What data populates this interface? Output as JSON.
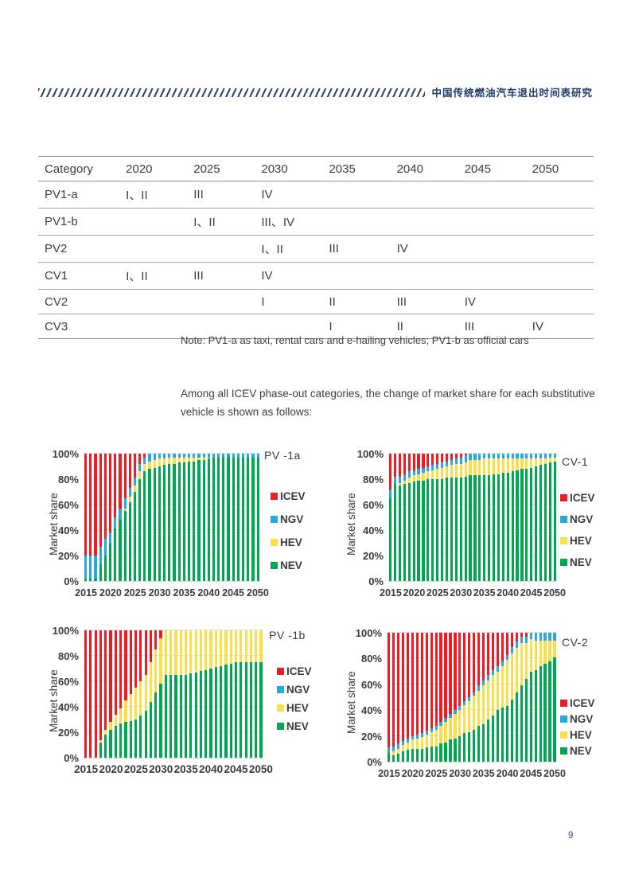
{
  "page": {
    "number": "9"
  },
  "header": {
    "title_zh": "中国传统燃油汽车退出时间表研究"
  },
  "phase_out_table": {
    "columns": [
      "Category",
      "2020",
      "2025",
      "2030",
      "2035",
      "2040",
      "2045",
      "2050"
    ],
    "rows": [
      {
        "category": "PV1-a",
        "cells": [
          "I、II",
          "III",
          "IV",
          "",
          "",
          "",
          ""
        ]
      },
      {
        "category": "PV1-b",
        "cells": [
          "",
          "I、II",
          "III、IV",
          "",
          "",
          "",
          ""
        ]
      },
      {
        "category": "PV2",
        "cells": [
          "",
          "",
          "I、II",
          "III",
          "IV",
          "",
          ""
        ]
      },
      {
        "category": "CV1",
        "cells": [
          "I、II",
          "III",
          "IV",
          "",
          "",
          "",
          ""
        ]
      },
      {
        "category": "CV2",
        "cells": [
          "",
          "",
          "I",
          "II",
          "III",
          "IV",
          ""
        ]
      },
      {
        "category": "CV3",
        "cells": [
          "",
          "",
          "",
          "I",
          "II",
          "III",
          "IV"
        ]
      }
    ],
    "note": "Note: PV1-a as taxi, rental cars and e-hailing vehicles; PV1-b as official cars"
  },
  "paragraph": "Among all ICEV phase-out categories, the change of market share for each substitutive vehicle is shown as follows:",
  "colors": {
    "icev_red": "#ed1c24",
    "ngv_blue": "#29a8e0",
    "hev_yellow": "#f9e04b",
    "nev_green": "#00a650",
    "grid_gray": "#e3e3e3",
    "header_navy": "#1d3a66",
    "page_number_blue": "#27509e"
  },
  "chart_data": [
    {
      "type": "bar",
      "stacked": true,
      "title": "PV -1a",
      "ylabel": "Market share",
      "ylim": [
        0,
        100
      ],
      "x_range": [
        2015,
        2050
      ],
      "y_ticks": [
        "0%",
        "20%",
        "40%",
        "60%",
        "80%",
        "100%"
      ],
      "x_tick_labels": [
        "2015",
        "2020",
        "2025",
        "2030",
        "2035",
        "2040",
        "2045",
        "2050"
      ],
      "legend_order": [
        "ICEV",
        "NGV",
        "HEV",
        "NEV"
      ],
      "series": [
        {
          "name": "NEV",
          "color": "#00a650",
          "values": [
            2,
            2,
            2,
            13,
            20,
            30,
            41,
            48,
            55,
            62,
            70,
            80,
            86,
            88,
            89,
            90,
            91,
            92,
            92,
            93,
            93,
            94,
            94,
            95,
            95,
            96,
            97,
            97,
            97,
            97,
            97,
            97,
            97,
            97,
            97,
            97
          ]
        },
        {
          "name": "HEV",
          "color": "#f9e04b",
          "values": [
            0,
            0,
            0,
            0,
            0,
            0,
            0,
            0,
            2,
            4,
            5,
            6,
            6,
            6,
            6,
            6,
            5,
            5,
            5,
            4,
            4,
            3,
            3,
            2,
            2,
            1,
            0,
            0,
            0,
            0,
            0,
            0,
            0,
            0,
            0,
            0
          ]
        },
        {
          "name": "NGV",
          "color": "#29a8e0",
          "values": [
            18,
            18,
            18,
            14,
            13,
            8,
            9,
            9,
            8,
            7,
            6,
            6,
            5,
            6,
            5,
            4,
            4,
            3,
            3,
            3,
            3,
            3,
            3,
            3,
            3,
            3,
            3,
            3,
            3,
            3,
            3,
            3,
            3,
            3,
            3,
            3
          ]
        },
        {
          "name": "ICEV",
          "color": "#ed1c24",
          "values": [
            80,
            80,
            80,
            73,
            67,
            62,
            50,
            43,
            35,
            27,
            19,
            8,
            3,
            0,
            0,
            0,
            0,
            0,
            0,
            0,
            0,
            0,
            0,
            0,
            0,
            0,
            0,
            0,
            0,
            0,
            0,
            0,
            0,
            0,
            0,
            0
          ]
        }
      ]
    },
    {
      "type": "bar",
      "stacked": true,
      "title": "CV-1",
      "ylabel": "Market share",
      "ylim": [
        0,
        100
      ],
      "x_range": [
        2015,
        2050
      ],
      "y_ticks": [
        "0%",
        "20%",
        "40%",
        "60%",
        "80%",
        "100%"
      ],
      "x_tick_labels": [
        "2015",
        "2020",
        "2025",
        "2030",
        "2035",
        "2040",
        "2045",
        "2050"
      ],
      "legend_order": [
        "ICEV",
        "NGV",
        "HEV",
        "NEV"
      ],
      "series": [
        {
          "name": "NEV",
          "color": "#00a650",
          "values": [
            65,
            77,
            75,
            76,
            77,
            78,
            79,
            79,
            80,
            80,
            80,
            80,
            81,
            81,
            81,
            81,
            82,
            83,
            83,
            83,
            83,
            83,
            84,
            84,
            85,
            85,
            86,
            87,
            88,
            88,
            89,
            90,
            91,
            92,
            93,
            94
          ]
        },
        {
          "name": "HEV",
          "color": "#f9e04b",
          "values": [
            0,
            0,
            2,
            3,
            4,
            5,
            5,
            6,
            6,
            7,
            8,
            9,
            9,
            10,
            11,
            11,
            11,
            12,
            12,
            12,
            13,
            13,
            12,
            12,
            11,
            11,
            10,
            9,
            8,
            8,
            7,
            6,
            5,
            4,
            4,
            3
          ]
        },
        {
          "name": "NGV",
          "color": "#29a8e0",
          "values": [
            7,
            5,
            5,
            5,
            5,
            4,
            4,
            4,
            4,
            4,
            4,
            4,
            4,
            4,
            4,
            5,
            6,
            5,
            5,
            5,
            4,
            4,
            4,
            4,
            4,
            4,
            4,
            4,
            4,
            4,
            4,
            4,
            4,
            4,
            3,
            3
          ]
        },
        {
          "name": "ICEV",
          "color": "#ed1c24",
          "values": [
            28,
            18,
            18,
            16,
            14,
            13,
            12,
            11,
            10,
            9,
            8,
            7,
            6,
            5,
            4,
            3,
            1,
            0,
            0,
            0,
            0,
            0,
            0,
            0,
            0,
            0,
            0,
            0,
            0,
            0,
            0,
            0,
            0,
            0,
            0,
            0
          ]
        }
      ]
    },
    {
      "type": "bar",
      "stacked": true,
      "title": "PV -1b",
      "ylabel": "Market share",
      "ylim": [
        0,
        100
      ],
      "x_range": [
        2015,
        2050
      ],
      "y_ticks": [
        "0%",
        "20%",
        "40%",
        "60%",
        "80%",
        "100%"
      ],
      "x_tick_labels": [
        "2015",
        "2020",
        "2025",
        "2030",
        "2035",
        "2040",
        "2045",
        "2050"
      ],
      "legend_order": [
        "ICEV",
        "NGV",
        "HEV",
        "NEV"
      ],
      "series": [
        {
          "name": "NEV",
          "color": "#00a650",
          "values": [
            0,
            0,
            0,
            12,
            18,
            22,
            25,
            27,
            28,
            29,
            30,
            33,
            37,
            44,
            51,
            58,
            65,
            65,
            65,
            65,
            65,
            66,
            67,
            68,
            69,
            70,
            71,
            72,
            73,
            74,
            75,
            75,
            75,
            75,
            75,
            75
          ]
        },
        {
          "name": "HEV",
          "color": "#f9e04b",
          "values": [
            0,
            0,
            0,
            2,
            4,
            6,
            9,
            12,
            17,
            21,
            25,
            27,
            28,
            31,
            34,
            36,
            35,
            35,
            35,
            35,
            35,
            34,
            33,
            32,
            31,
            30,
            29,
            28,
            27,
            26,
            25,
            25,
            25,
            25,
            25,
            25
          ]
        },
        {
          "name": "NGV",
          "color": "#29a8e0",
          "values": [
            0,
            0,
            0,
            0,
            0,
            0,
            0,
            0,
            0,
            0,
            0,
            0,
            0,
            0,
            0,
            0,
            0,
            0,
            0,
            0,
            0,
            0,
            0,
            0,
            0,
            0,
            0,
            0,
            0,
            0,
            0,
            0,
            0,
            0,
            0,
            0
          ]
        },
        {
          "name": "ICEV",
          "color": "#ed1c24",
          "values": [
            100,
            100,
            100,
            86,
            78,
            72,
            66,
            61,
            55,
            50,
            45,
            40,
            35,
            25,
            15,
            6,
            0,
            0,
            0,
            0,
            0,
            0,
            0,
            0,
            0,
            0,
            0,
            0,
            0,
            0,
            0,
            0,
            0,
            0,
            0,
            0
          ]
        }
      ]
    },
    {
      "type": "bar",
      "stacked": true,
      "title": "CV-2",
      "ylabel": "Market share",
      "ylim": [
        0,
        100
      ],
      "x_range": [
        2015,
        2050
      ],
      "y_ticks": [
        "0%",
        "20%",
        "40%",
        "60%",
        "80%",
        "100%"
      ],
      "x_tick_labels": [
        "2015",
        "2020",
        "2025",
        "2030",
        "2035",
        "2040",
        "2045",
        "2050"
      ],
      "legend_order": [
        "ICEV",
        "NGV",
        "HEV",
        "NEV"
      ],
      "series": [
        {
          "name": "NEV",
          "color": "#00a650",
          "values": [
            7,
            5,
            6,
            8,
            9,
            10,
            10,
            10,
            11,
            12,
            12,
            14,
            15,
            17,
            18,
            20,
            22,
            23,
            25,
            28,
            29,
            33,
            36,
            40,
            42,
            43,
            48,
            54,
            59,
            64,
            70,
            71,
            74,
            76,
            78,
            81
          ]
        },
        {
          "name": "HEV",
          "color": "#f9e04b",
          "values": [
            0,
            3,
            4,
            5,
            6,
            7,
            8,
            9,
            10,
            11,
            13,
            14,
            16,
            17,
            19,
            20,
            22,
            24,
            26,
            27,
            30,
            30,
            31,
            30,
            32,
            36,
            36,
            34,
            33,
            28,
            25,
            23,
            20,
            18,
            16,
            13
          ]
        },
        {
          "name": "NGV",
          "color": "#29a8e0",
          "values": [
            4,
            4,
            4,
            3,
            3,
            3,
            3,
            3,
            3,
            3,
            3,
            3,
            3,
            3,
            3,
            3,
            3,
            3,
            3,
            4,
            4,
            4,
            4,
            4,
            4,
            4,
            5,
            5,
            5,
            5,
            5,
            6,
            6,
            6,
            6,
            6
          ]
        },
        {
          "name": "ICEV",
          "color": "#ed1c24",
          "values": [
            89,
            88,
            86,
            84,
            82,
            80,
            79,
            78,
            76,
            74,
            72,
            69,
            66,
            63,
            60,
            57,
            53,
            50,
            46,
            41,
            37,
            33,
            29,
            26,
            22,
            17,
            11,
            7,
            3,
            3,
            0,
            0,
            0,
            0,
            0,
            0
          ]
        }
      ]
    }
  ]
}
